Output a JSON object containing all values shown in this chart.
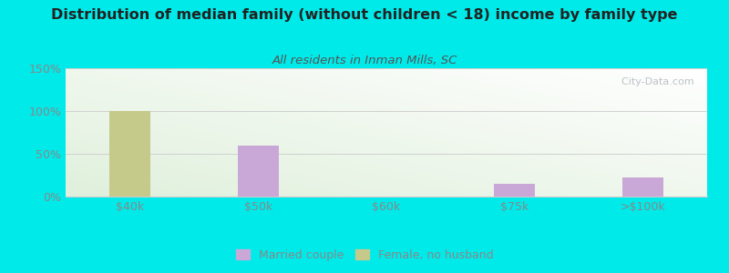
{
  "title": "Distribution of median family (without children < 18) income by family type",
  "subtitle": "All residents in Inman Mills, SC",
  "categories": [
    "$40k",
    "$50k",
    "$60k",
    "$75k",
    ">$100k"
  ],
  "married_couple": [
    0,
    60,
    0,
    15,
    22
  ],
  "female_no_husband": [
    100,
    0,
    0,
    0,
    0
  ],
  "bar_width": 0.32,
  "ylim": [
    0,
    150
  ],
  "yticks": [
    0,
    50,
    100,
    150
  ],
  "ytick_labels": [
    "0%",
    "50%",
    "100%",
    "150%"
  ],
  "married_color": "#c9a8d8",
  "female_color": "#c5c98a",
  "background_color": "#00eaea",
  "title_color": "#222222",
  "subtitle_color": "#555555",
  "tick_color": "#888888",
  "title_fontsize": 11.5,
  "subtitle_fontsize": 9.5,
  "legend_fontsize": 9,
  "watermark": "  City-Data.com"
}
